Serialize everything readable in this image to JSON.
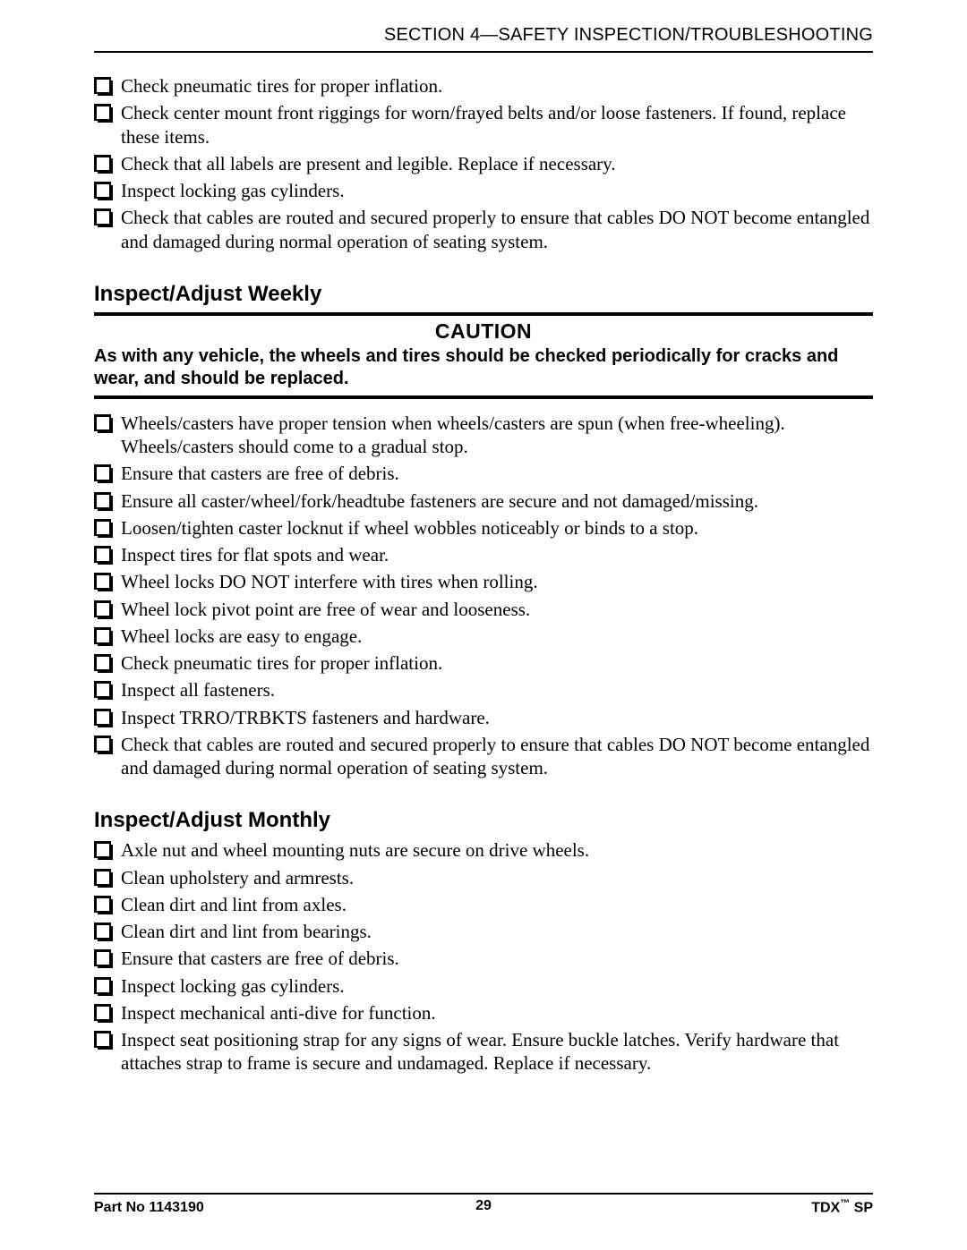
{
  "header": {
    "section_label": "SECTION 4—SAFETY INSPECTION/TROUBLESHOOTING"
  },
  "initial_checklist": [
    "Check pneumatic tires for proper inflation.",
    "Check center mount front riggings for worn/frayed belts and/or loose fasteners. If found, replace these items.",
    "Check that all labels are present and legible. Replace if necessary.",
    "Inspect locking gas cylinders.",
    "Check that cables are routed and secured properly to ensure that cables DO NOT become entangled and damaged during normal operation of seating system."
  ],
  "weekly": {
    "heading": "Inspect/Adjust Weekly",
    "caution_title": "CAUTION",
    "caution_text": "As with any vehicle, the wheels and tires should be checked periodically for cracks and wear, and should be replaced.",
    "items": [
      "Wheels/casters have proper tension when wheels/casters are spun (when free-wheeling). Wheels/casters should come to a gradual stop.",
      "Ensure that casters are free of debris.",
      "Ensure all caster/wheel/fork/headtube fasteners are secure and not damaged/missing.",
      "Loosen/tighten caster locknut if wheel wobbles noticeably or binds to a stop.",
      "Inspect tires for flat spots and wear.",
      "Wheel locks DO NOT interfere with tires when rolling.",
      "Wheel lock pivot point are free of wear and looseness.",
      "Wheel locks are easy to engage.",
      "Check pneumatic tires for proper inflation.",
      "Inspect all fasteners.",
      "Inspect TRRO/TRBKTS fasteners and hardware.",
      "Check that cables are routed and secured properly to ensure that cables DO NOT become entangled and damaged during normal operation of seating system."
    ]
  },
  "monthly": {
    "heading": "Inspect/Adjust Monthly",
    "items": [
      "Axle nut and wheel mounting nuts are secure on drive wheels.",
      "Clean upholstery and armrests.",
      "Clean dirt and lint from axles.",
      "Clean dirt and lint from bearings.",
      "Ensure that casters are free of debris.",
      "Inspect locking gas cylinders.",
      "Inspect mechanical anti-dive for function.",
      "Inspect seat positioning strap for any signs of wear. Ensure buckle latches. Verify hardware that attaches strap to frame is secure and undamaged. Replace if necessary."
    ]
  },
  "footer": {
    "part_no": "Part No 1143190",
    "page_number": "29",
    "product_prefix": "TDX",
    "product_tm": "™",
    "product_suffix": " SP"
  }
}
